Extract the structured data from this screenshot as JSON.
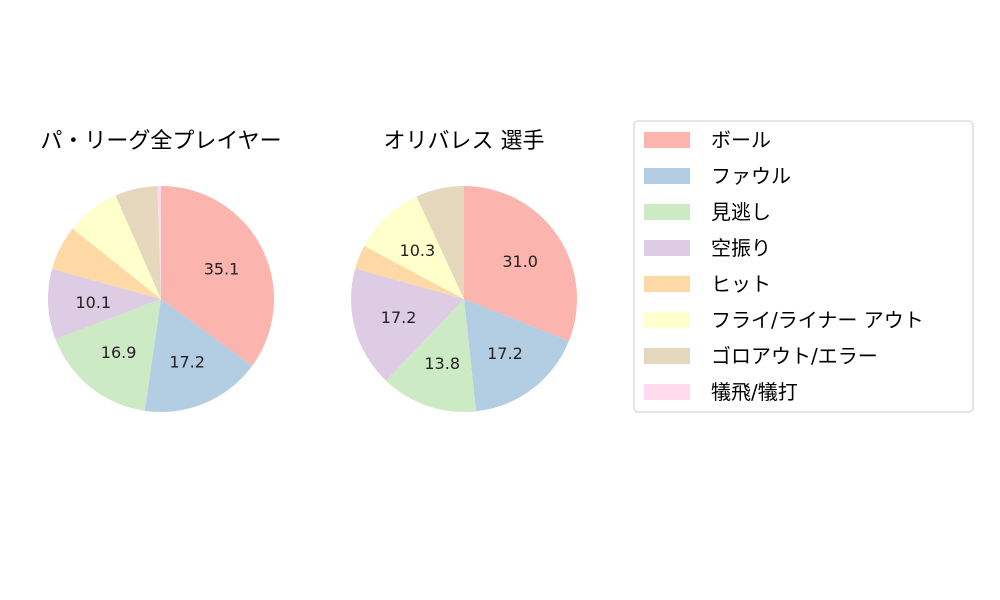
{
  "chart_data": [
    {
      "type": "pie",
      "title": "パ・リーグ全プレイヤー",
      "categories": [
        "ボール",
        "ファウル",
        "見逃し",
        "空振り",
        "ヒット",
        "フライ/ライナー アウト",
        "ゴロアウト/エラー",
        "犠飛/犠打"
      ],
      "values": [
        35.1,
        17.2,
        16.9,
        10.1,
        6.4,
        7.7,
        6.1,
        0.5
      ],
      "data_labels": [
        "35.1",
        "17.2",
        "16.9",
        "10.1",
        "",
        "",
        "",
        ""
      ]
    },
    {
      "type": "pie",
      "title": "オリバレス  選手",
      "categories": [
        "ボール",
        "ファウル",
        "見逃し",
        "空振り",
        "ヒット",
        "フライ/ライナー アウト",
        "ゴロアウト/エラー",
        "犠飛/犠打"
      ],
      "values": [
        31.0,
        17.2,
        13.8,
        17.2,
        3.4,
        10.3,
        6.9,
        0.0
      ],
      "data_labels": [
        "31.0",
        "17.2",
        "13.8",
        "17.2",
        "",
        "10.3",
        "",
        ""
      ]
    }
  ],
  "legend": {
    "placement": "right",
    "items": [
      {
        "label": "ボール",
        "color": "#fbb4ae"
      },
      {
        "label": "ファウル",
        "color": "#b3cde3"
      },
      {
        "label": "見逃し",
        "color": "#ccebc5"
      },
      {
        "label": "空振り",
        "color": "#decbe4"
      },
      {
        "label": "ヒット",
        "color": "#fed9a6"
      },
      {
        "label": "フライ/ライナー アウト",
        "color": "#ffffcc"
      },
      {
        "label": "ゴロアウト/エラー",
        "color": "#e5d8bd"
      },
      {
        "label": "犠飛/犠打",
        "color": "#fddaec"
      }
    ]
  }
}
